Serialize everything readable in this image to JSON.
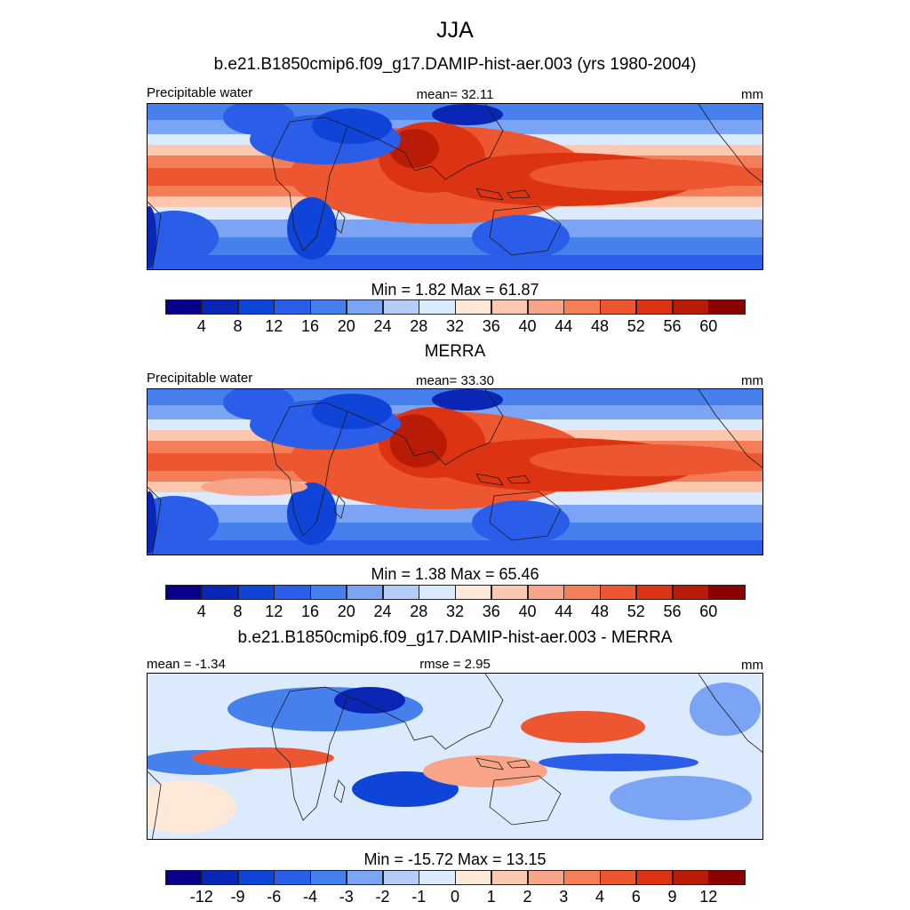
{
  "title": "JJA",
  "palette_abs": [
    "#08008a",
    "#0a26b4",
    "#0e44d8",
    "#2a5ee8",
    "#4680ec",
    "#7ca4f4",
    "#b4ccf8",
    "#dceafe",
    "#fee8d8",
    "#fcc8b0",
    "#f8a488",
    "#f47e58",
    "#ec5630",
    "#dc3412",
    "#b81c06",
    "#8a0200"
  ],
  "palette_diff": [
    "#08008a",
    "#0a26b4",
    "#0e44d8",
    "#2a5ee8",
    "#4680ec",
    "#7ca4f4",
    "#b4ccf8",
    "#dceafe",
    "#fee8d8",
    "#fcc8b0",
    "#f8a488",
    "#f47e58",
    "#ec5630",
    "#dc3412",
    "#b81c06",
    "#8a0200"
  ],
  "panels": [
    {
      "id": "model",
      "heading": "b.e21.B1850cmip6.f09_g17.DAMIP-hist-aer.003 (yrs 1980-2004)",
      "left_label": "Precipitable water",
      "center_label": "mean=  32.11",
      "right_label": "mm",
      "minmax": "Min =    1.82 Max =  61.87",
      "ticks": [
        "4",
        "8",
        "12",
        "16",
        "20",
        "24",
        "28",
        "32",
        "36",
        "40",
        "44",
        "48",
        "52",
        "56",
        "60"
      ]
    },
    {
      "id": "obs",
      "heading": "MERRA",
      "left_label": "Precipitable water",
      "center_label": "mean=  33.30",
      "right_label": "mm",
      "minmax": "Min =    1.38 Max =  65.46",
      "ticks": [
        "4",
        "8",
        "12",
        "16",
        "20",
        "24",
        "28",
        "32",
        "36",
        "40",
        "44",
        "48",
        "52",
        "56",
        "60"
      ]
    },
    {
      "id": "diff",
      "heading": "b.e21.B1850cmip6.f09_g17.DAMIP-hist-aer.003 - MERRA",
      "left_label": "mean =  -1.34",
      "center_label": "rmse =    2.95",
      "right_label": "mm",
      "minmax": "Min = -15.72 Max =  13.15",
      "ticks": [
        "-12",
        "-9",
        "-6",
        "-4",
        "-3",
        "-2",
        "-1",
        "0",
        "1",
        "2",
        "3",
        "4",
        "6",
        "9",
        "12"
      ]
    }
  ]
}
